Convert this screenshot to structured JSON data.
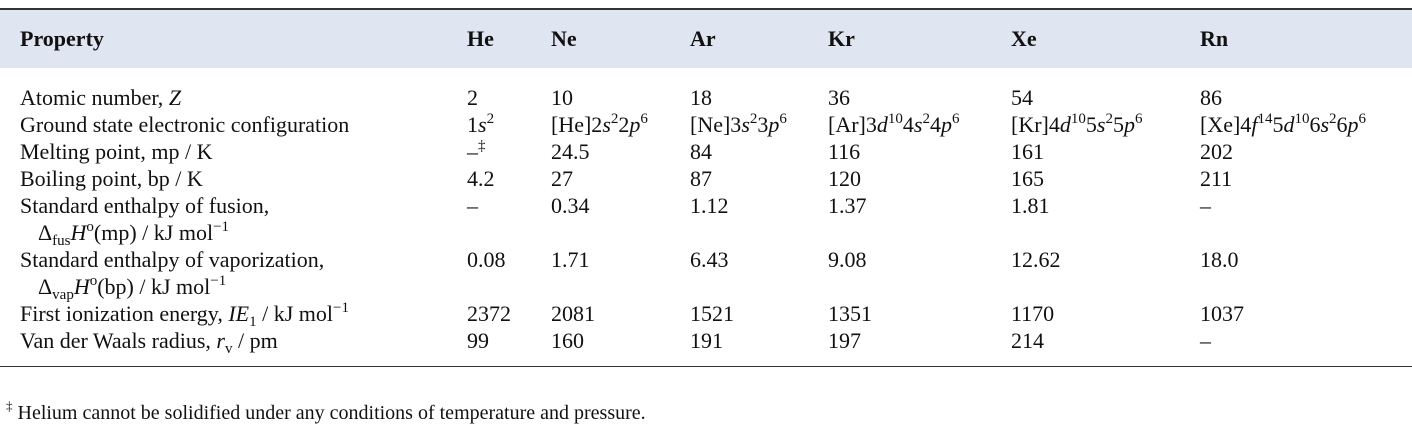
{
  "table": {
    "header": [
      "Property",
      "He",
      "Ne",
      "Ar",
      "Kr",
      "Xe",
      "Rn"
    ],
    "rows": [
      [
        [
          "Atomic number, ",
          "Z"
        ],
        "2",
        "10",
        "18",
        "36",
        "54",
        "86"
      ],
      [
        [
          "Ground state electronic configuration"
        ],
        [
          "1",
          "s",
          "2"
        ],
        [
          "[He]2",
          "s",
          "2",
          "2",
          "p",
          "6"
        ],
        [
          "[Ne]3",
          "s",
          "2",
          "3",
          "p",
          "6"
        ],
        [
          "[Ar]3",
          "d",
          "10",
          "4",
          "s",
          "2",
          "4",
          "p",
          "6"
        ],
        [
          "[Kr]4",
          "d",
          "10",
          "5",
          "s",
          "2",
          "5",
          "p",
          "6"
        ],
        [
          "[Xe]4",
          "f",
          "14",
          "5",
          "d",
          "10",
          "6",
          "s",
          "2",
          "6",
          "p",
          "6"
        ]
      ],
      [
        [
          "Melting point, mp / K"
        ],
        [
          "–",
          "‡"
        ],
        "24.5",
        "84",
        "116",
        "161",
        "202"
      ],
      [
        [
          "Boiling point, bp / K"
        ],
        "4.2",
        "27",
        "87",
        "120",
        "165",
        "211"
      ],
      [
        [
          "Standard enthalpy of fusion,",
          "Δ",
          "fus",
          "H",
          "o",
          "(mp) / kJ mol",
          "−1"
        ],
        "–",
        "0.34",
        "1.12",
        "1.37",
        "1.81",
        "–"
      ],
      [
        [
          "Standard enthalpy of vaporization,",
          "Δ",
          "vap",
          "H",
          "o",
          "(bp) / kJ mol",
          "−1"
        ],
        "0.08",
        "1.71",
        "6.43",
        "9.08",
        "12.62",
        "18.0"
      ],
      [
        [
          "First ionization energy, ",
          "IE",
          "1",
          " / kJ mol",
          "−1"
        ],
        "2372",
        "2081",
        "1521",
        "1351",
        "1170",
        "1037"
      ],
      [
        [
          "Van der Waals radius, ",
          "r",
          "v",
          " / pm"
        ],
        "99",
        "160",
        "191",
        "197",
        "214",
        "–"
      ]
    ]
  },
  "footnote": [
    "‡",
    " Helium cannot be solidified under any conditions of temperature and pressure."
  ]
}
